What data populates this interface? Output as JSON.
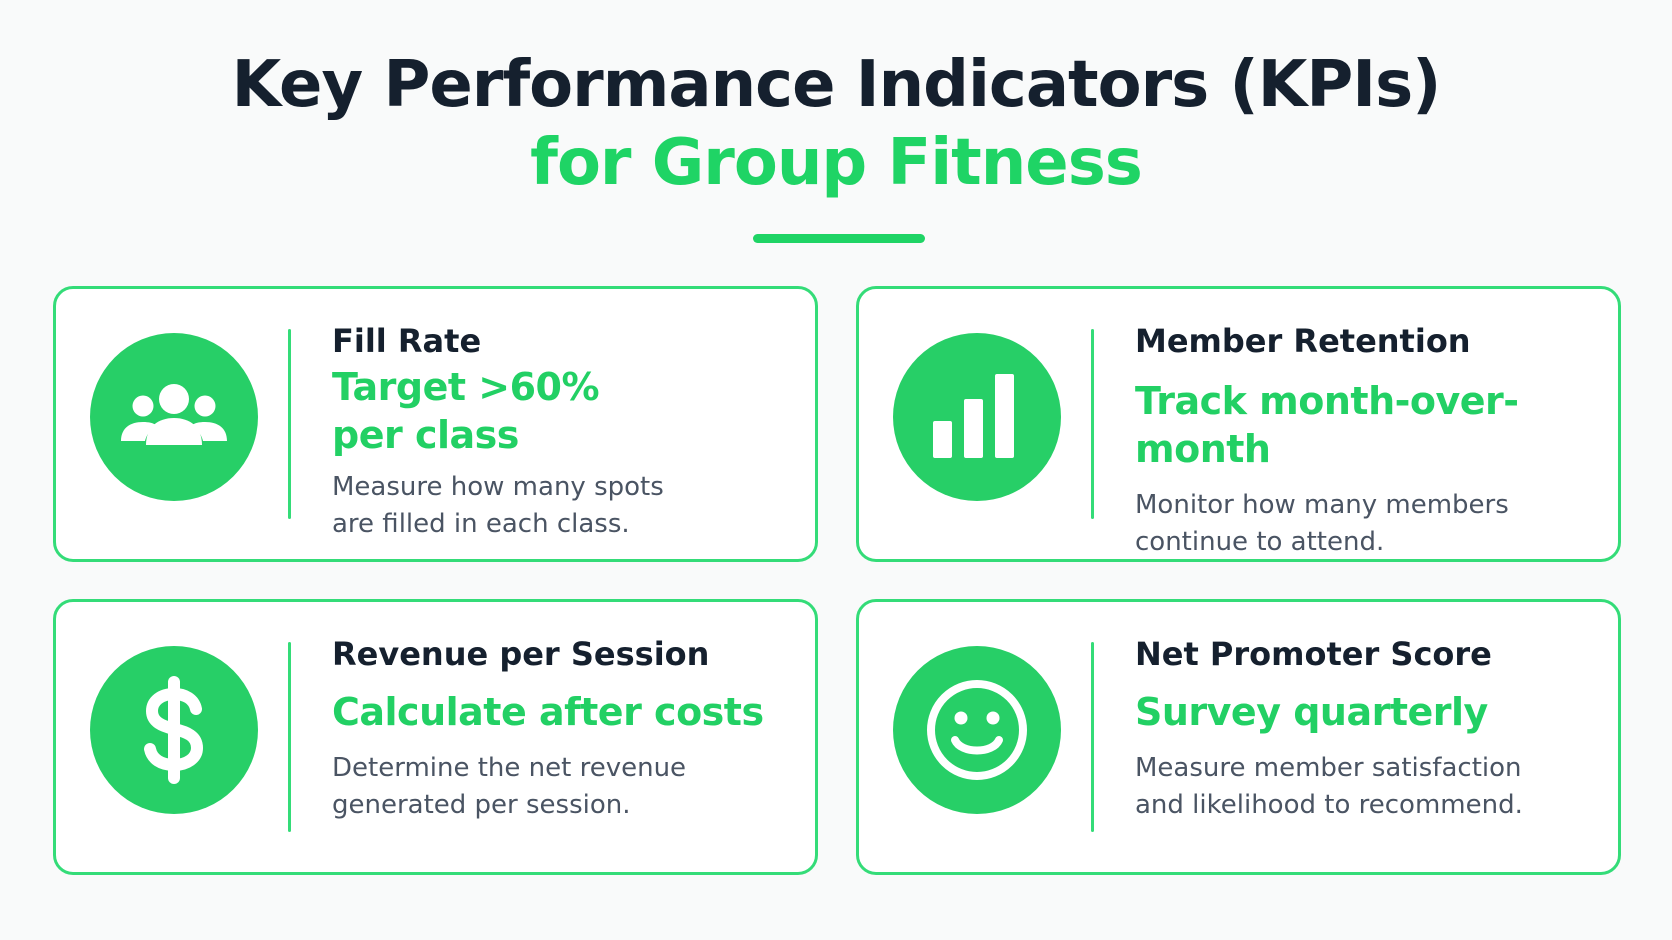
{
  "header": {
    "title_line1": "Key Performance Indicators (KPIs)",
    "title_line2": "for Group Fitness"
  },
  "colors": {
    "accent": "#1fd465",
    "dark_text": "#15202e",
    "body_text": "#4a5463",
    "card_border": "#34dc78",
    "background": "#f9fafa"
  },
  "kpis": [
    {
      "icon": "group-users-icon",
      "name": "Fill Rate",
      "target_line1": "Target >60%",
      "target_line2": "per class",
      "desc_line1": "Measure how many spots",
      "desc_line2": "are filled in each class."
    },
    {
      "icon": "bar-chart-icon",
      "name": "Member Retention",
      "target": "Track month-over-month",
      "desc_line1": "Monitor how many members",
      "desc_line2": "continue to attend."
    },
    {
      "icon": "dollar-sign-icon",
      "name": "Revenue per Session",
      "target": "Calculate after costs",
      "desc_line1": "Determine the net revenue",
      "desc_line2": "generated per session."
    },
    {
      "icon": "smiley-face-icon",
      "name": "Net Promoter Score",
      "target": "Survey quarterly",
      "desc_line1": "Measure member satisfaction",
      "desc_line2": "and likelihood to recommend."
    }
  ]
}
